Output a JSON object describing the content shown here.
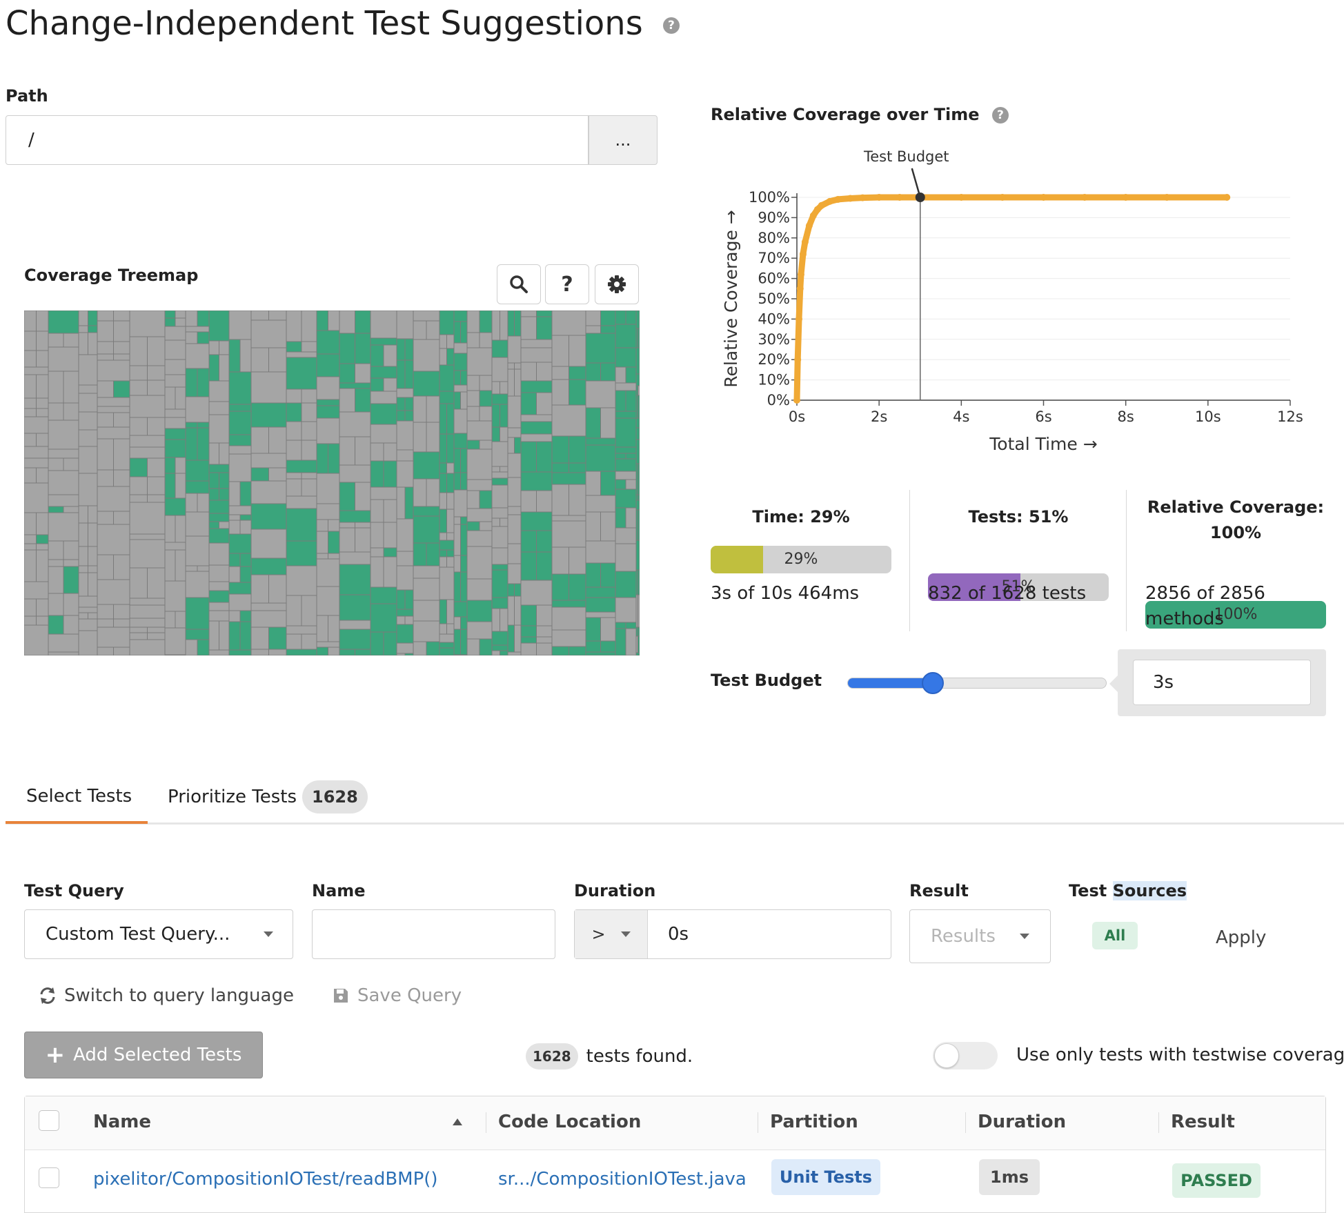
{
  "page": {
    "title": "Change-Independent Test Suggestions",
    "help_glyph": "?"
  },
  "path": {
    "label": "Path",
    "value": "/",
    "browse_label": "..."
  },
  "treemap": {
    "title": "Coverage Treemap",
    "covered_color": "#3aa57c",
    "uncovered_color": "#a5a5a5",
    "grid_color": "#7a7a7a",
    "tools": [
      {
        "name": "search-icon"
      },
      {
        "name": "help-icon",
        "glyph": "?"
      },
      {
        "name": "gear-icon"
      }
    ]
  },
  "chart_data": {
    "type": "line",
    "title": "Relative Coverage over Time",
    "xlabel": "Total Time →",
    "ylabel": "Relative Coverage →",
    "xlim": [
      0,
      12
    ],
    "ylim": [
      0,
      100
    ],
    "x_ticks": [
      0,
      2,
      4,
      6,
      8,
      10,
      12
    ],
    "x_tick_labels": [
      "0s",
      "2s",
      "4s",
      "6s",
      "8s",
      "10s",
      "12s"
    ],
    "y_ticks": [
      0,
      10,
      20,
      30,
      40,
      50,
      60,
      70,
      80,
      90,
      100
    ],
    "y_tick_labels": [
      "0%",
      "10%",
      "20%",
      "30%",
      "40%",
      "50%",
      "60%",
      "70%",
      "80%",
      "90%",
      "100%"
    ],
    "grid": true,
    "series_color": "#f0a935",
    "x": [
      0,
      0.02,
      0.05,
      0.08,
      0.1,
      0.15,
      0.2,
      0.3,
      0.4,
      0.5,
      0.6,
      0.8,
      1.0,
      1.3,
      1.6,
      2.0,
      2.5,
      3.0,
      4.0,
      5.0,
      6.0,
      7.0,
      8.0,
      9.0,
      10.46
    ],
    "y": [
      0,
      20,
      40,
      55,
      62,
      72,
      78,
      86,
      91,
      94,
      96,
      98,
      99,
      99.5,
      99.8,
      100,
      100,
      100,
      100,
      100,
      100,
      100,
      100,
      100,
      100
    ],
    "annotation": {
      "text": "Test Budget",
      "x": 3.0,
      "y": 100
    }
  },
  "metrics": [
    {
      "title": "Time: 29%",
      "bar_label": "29%",
      "fraction": 0.29,
      "color": "#c0bf3e",
      "sub": "3s of 10s 464ms"
    },
    {
      "title": "Tests: 51%",
      "bar_label": "51%",
      "fraction": 0.51,
      "color": "#9268bd",
      "sub": "832 of 1628 tests"
    },
    {
      "title_line1": "Relative Coverage:",
      "title_line2": "100%",
      "bar_label": "100%",
      "fraction": 1.0,
      "color": "#3aa57c",
      "sub_line1": "2856 of 2856",
      "sub_line2": "methods"
    }
  ],
  "budget": {
    "label": "Test Budget",
    "value": "3s",
    "slider_fraction": 0.33
  },
  "tabs": [
    {
      "label": "Select Tests"
    },
    {
      "label": "Prioritize Tests",
      "count": "1628"
    }
  ],
  "filters": {
    "query_label": "Test Query",
    "query_value": "Custom Test Query...",
    "name_label": "Name",
    "name_value": "",
    "duration_label": "Duration",
    "duration_operator": ">",
    "duration_value": "0s",
    "result_label": "Result",
    "result_placeholder": "Results",
    "sources_label_a": "Test ",
    "sources_label_b": "Sources",
    "sources_chip": "All",
    "apply_label": "Apply",
    "switch_label": "Switch to query language",
    "save_label": "Save Query"
  },
  "actions": {
    "add_label": "Add Selected Tests",
    "found_count": "1628",
    "found_text": "tests found.",
    "toggle_label": "Use only tests with testwise coverage"
  },
  "table": {
    "columns": [
      "Name",
      "Code Location",
      "Partition",
      "Duration",
      "Result"
    ],
    "rows": [
      {
        "name": "pixelitor/CompositionIOTest/readBMP()",
        "location": "sr.../CompositionIOTest.java",
        "partition": "Unit Tests",
        "duration": "1ms",
        "result": "PASSED"
      }
    ]
  }
}
